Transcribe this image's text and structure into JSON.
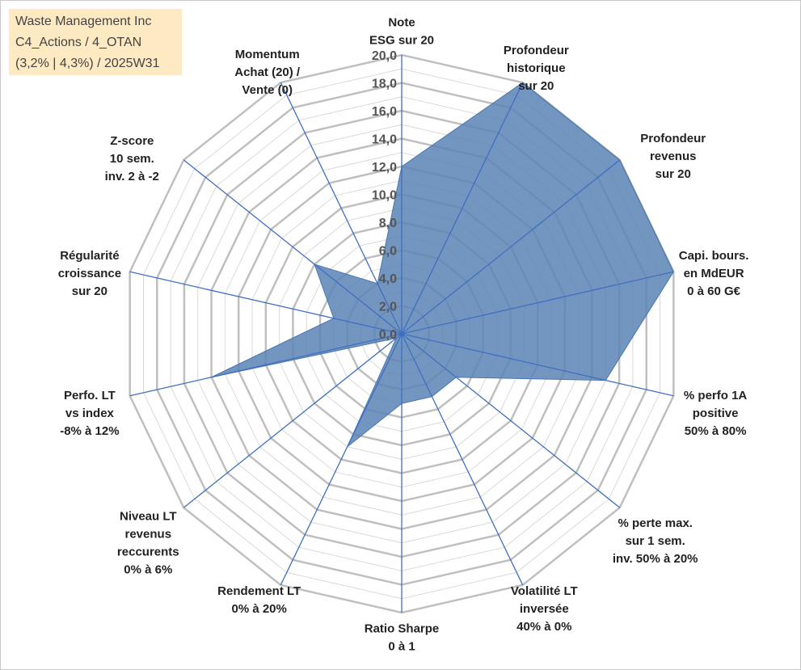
{
  "header": {
    "line1": "Waste Management Inc",
    "line2": "C4_Actions / 4_OTAN",
    "line3": "(3,2% | 4,3%) / 2025W31"
  },
  "colors": {
    "fill": "#5b84b5",
    "spoke": "#3f6fbf",
    "grid_major": "#bfbfbf",
    "grid_minor": "#d9d9d9"
  },
  "chart_data": {
    "type": "radar",
    "range": [
      0,
      20
    ],
    "major_step": 2,
    "minor_step": 1,
    "tick_labels": [
      "0,0",
      "2,0",
      "4,0",
      "6,0",
      "8,0",
      "10,0",
      "12,0",
      "14,0",
      "16,0",
      "18,0",
      "20,0"
    ],
    "axes": [
      [
        "Note",
        "ESG sur 20"
      ],
      [
        "Profondeur",
        "historique",
        "sur 20"
      ],
      [
        "Profondeur",
        "revenus",
        "sur 20"
      ],
      [
        "Capi. bours.",
        "en MdEUR",
        "0 à 60 G€"
      ],
      [
        "% perfo 1A",
        "positive",
        "50% à 80%"
      ],
      [
        "% perte max.",
        "sur 1 sem.",
        "inv. 50% à 20%"
      ],
      [
        "Volatilité LT",
        "inversée",
        "40% à 0%"
      ],
      [
        "Ratio Sharpe",
        "0 à 1"
      ],
      [
        "Rendement LT",
        "0% à 20%"
      ],
      [
        "Niveau LT",
        "revenus",
        "reccurents",
        "0% à 6%"
      ],
      [
        "Perfo. LT",
        "vs index",
        "-8% à 12%"
      ],
      [
        "Régularité",
        "croissance",
        "sur 20"
      ],
      [
        "Z-score",
        "10 sem.",
        "inv. 2 à -2"
      ],
      [
        "Momentum",
        "Achat (20) /",
        "Vente (0)"
      ]
    ],
    "values": [
      12.0,
      20.0,
      20.0,
      20.0,
      15.0,
      5.0,
      5.0,
      5.0,
      9.0,
      0.5,
      14.0,
      5.0,
      8.0,
      4.0
    ],
    "grid": true,
    "legend": "none"
  }
}
